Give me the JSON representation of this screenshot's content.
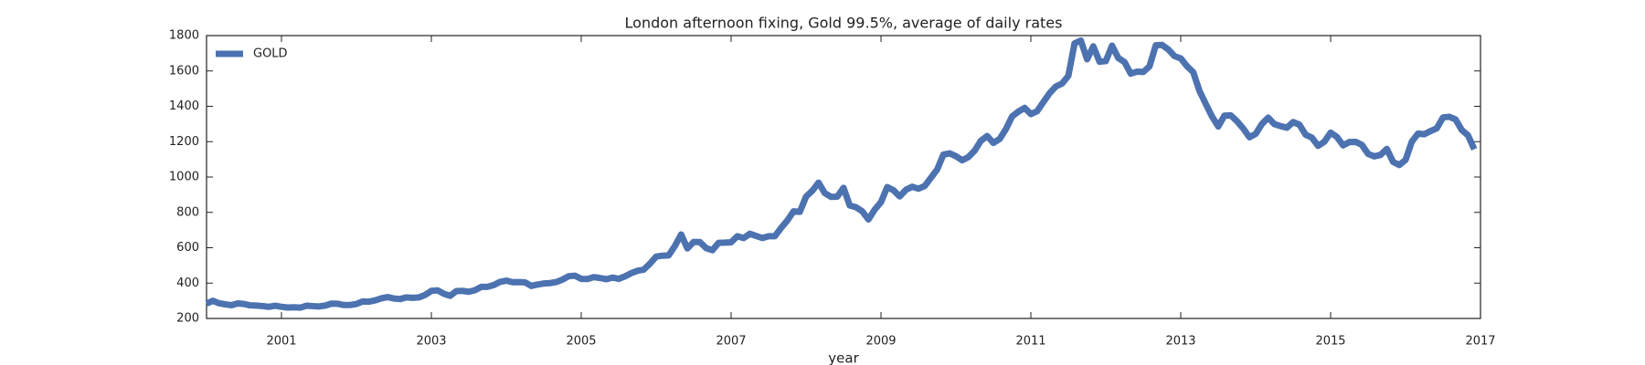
{
  "chart_data": {
    "type": "line",
    "title": "London afternoon fixing, Gold 99.5%, average of daily rates",
    "x_label": "year",
    "x": [
      2000,
      2000.083,
      2000.167,
      2000.25,
      2000.333,
      2000.417,
      2000.5,
      2000.583,
      2000.667,
      2000.75,
      2000.833,
      2000.917,
      2001,
      2001.083,
      2001.167,
      2001.25,
      2001.333,
      2001.417,
      2001.5,
      2001.583,
      2001.667,
      2001.75,
      2001.833,
      2001.917,
      2002,
      2002.083,
      2002.167,
      2002.25,
      2002.333,
      2002.417,
      2002.5,
      2002.583,
      2002.667,
      2002.75,
      2002.833,
      2002.917,
      2003,
      2003.083,
      2003.167,
      2003.25,
      2003.333,
      2003.417,
      2003.5,
      2003.583,
      2003.667,
      2003.75,
      2003.833,
      2003.917,
      2004,
      2004.083,
      2004.167,
      2004.25,
      2004.333,
      2004.417,
      2004.5,
      2004.583,
      2004.667,
      2004.75,
      2004.833,
      2004.917,
      2005,
      2005.083,
      2005.167,
      2005.25,
      2005.333,
      2005.417,
      2005.5,
      2005.583,
      2005.667,
      2005.75,
      2005.833,
      2005.917,
      2006,
      2006.083,
      2006.167,
      2006.25,
      2006.333,
      2006.417,
      2006.5,
      2006.583,
      2006.667,
      2006.75,
      2006.833,
      2006.917,
      2007,
      2007.083,
      2007.167,
      2007.25,
      2007.333,
      2007.417,
      2007.5,
      2007.583,
      2007.667,
      2007.75,
      2007.833,
      2007.917,
      2008,
      2008.083,
      2008.167,
      2008.25,
      2008.333,
      2008.417,
      2008.5,
      2008.583,
      2008.667,
      2008.75,
      2008.833,
      2008.917,
      2009,
      2009.083,
      2009.167,
      2009.25,
      2009.333,
      2009.417,
      2009.5,
      2009.583,
      2009.667,
      2009.75,
      2009.833,
      2009.917,
      2010,
      2010.083,
      2010.167,
      2010.25,
      2010.333,
      2010.417,
      2010.5,
      2010.583,
      2010.667,
      2010.75,
      2010.833,
      2010.917,
      2011,
      2011.083,
      2011.167,
      2011.25,
      2011.333,
      2011.417,
      2011.5,
      2011.583,
      2011.667,
      2011.75,
      2011.833,
      2011.917,
      2012,
      2012.083,
      2012.167,
      2012.25,
      2012.333,
      2012.417,
      2012.5,
      2012.583,
      2012.667,
      2012.75,
      2012.833,
      2012.917,
      2013,
      2013.083,
      2013.167,
      2013.25,
      2013.333,
      2013.417,
      2013.5,
      2013.583,
      2013.667,
      2013.75,
      2013.833,
      2013.917,
      2014,
      2014.083,
      2014.167,
      2014.25,
      2014.333,
      2014.417,
      2014.5,
      2014.583,
      2014.667,
      2014.75,
      2014.833,
      2014.917,
      2015,
      2015.083,
      2015.167,
      2015.25,
      2015.333,
      2015.417,
      2015.5,
      2015.583,
      2015.667,
      2015.75,
      2015.833,
      2015.917,
      2016,
      2016.083,
      2016.167,
      2016.25,
      2016.333,
      2016.417,
      2016.5,
      2016.583,
      2016.667,
      2016.75,
      2016.833,
      2016.917
    ],
    "series": [
      {
        "name": "GOLD",
        "color": "#4c72b0",
        "values": [
          284,
          300,
          286,
          280,
          275,
          285,
          282,
          274,
          273,
          270,
          266,
          272,
          266,
          262,
          263,
          261,
          272,
          270,
          268,
          273,
          284,
          283,
          276,
          276,
          282,
          296,
          295,
          302,
          314,
          321,
          313,
          310,
          319,
          317,
          319,
          333,
          356,
          359,
          340,
          328,
          355,
          356,
          351,
          360,
          379,
          379,
          389,
          407,
          414,
          405,
          406,
          404,
          384,
          392,
          398,
          400,
          406,
          420,
          439,
          442,
          424,
          423,
          434,
          429,
          422,
          431,
          424,
          438,
          456,
          470,
          476,
          510,
          550,
          555,
          557,
          610,
          675,
          596,
          633,
          632,
          598,
          586,
          628,
          629,
          631,
          665,
          655,
          679,
          667,
          655,
          665,
          665,
          712,
          754,
          806,
          803,
          889,
          922,
          968,
          909,
          888,
          889,
          939,
          839,
          829,
          806,
          760,
          816,
          858,
          943,
          925,
          890,
          928,
          945,
          934,
          949,
          996,
          1043,
          1127,
          1134,
          1118,
          1095,
          1113,
          1149,
          1205,
          1232,
          1193,
          1215,
          1271,
          1343,
          1370,
          1391,
          1356,
          1372,
          1424,
          1474,
          1512,
          1529,
          1572,
          1756,
          1772,
          1666,
          1739,
          1652,
          1656,
          1743,
          1673,
          1650,
          1585,
          1596,
          1594,
          1626,
          1745,
          1747,
          1722,
          1684,
          1671,
          1627,
          1593,
          1487,
          1414,
          1343,
          1286,
          1347,
          1349,
          1316,
          1275,
          1225,
          1244,
          1300,
          1336,
          1299,
          1288,
          1279,
          1311,
          1296,
          1239,
          1223,
          1176,
          1200,
          1251,
          1227,
          1179,
          1198,
          1199,
          1182,
          1131,
          1117,
          1125,
          1159,
          1086,
          1068,
          1097,
          1200,
          1246,
          1242,
          1260,
          1276,
          1337,
          1341,
          1326,
          1266,
          1236,
          1157
        ]
      }
    ],
    "xlim": [
      2000,
      2017
    ],
    "xticks": [
      2001,
      2003,
      2005,
      2007,
      2009,
      2011,
      2013,
      2015,
      2017
    ],
    "ylim": [
      200,
      1800
    ],
    "yticks": [
      200,
      400,
      600,
      800,
      1000,
      1200,
      1400,
      1600,
      1800
    ],
    "legend": "upper left"
  }
}
